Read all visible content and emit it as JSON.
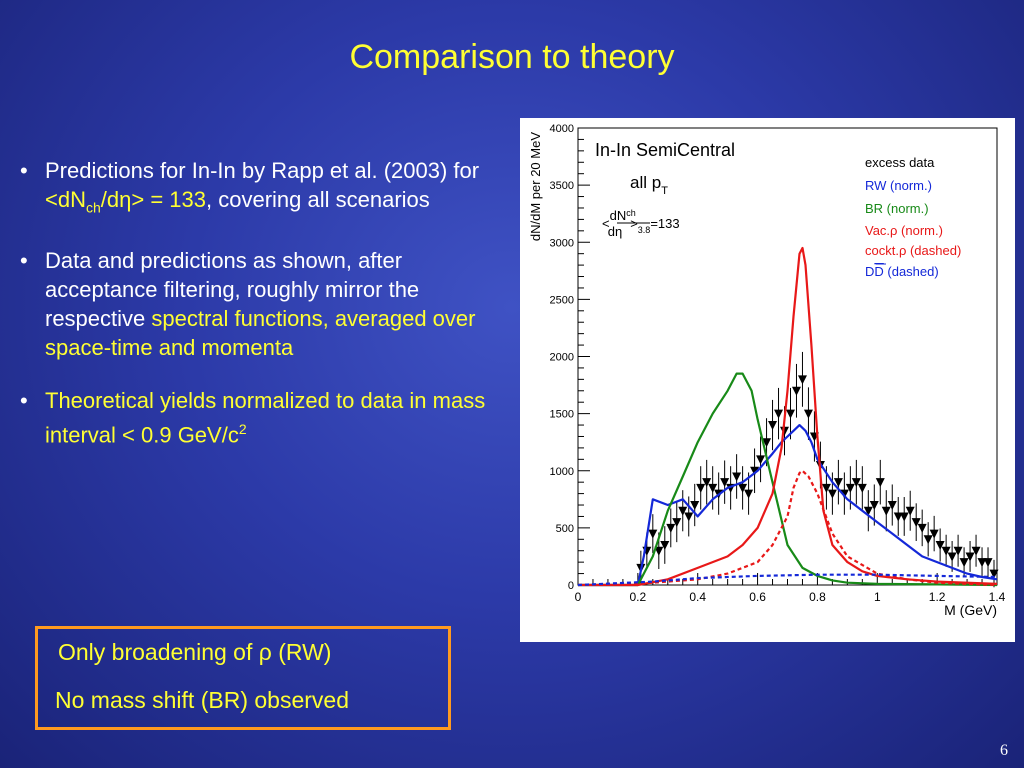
{
  "slide": {
    "title": "Comparison to theory",
    "page_number": "6",
    "bullets": [
      {
        "a": "Predictions for In-In by Rapp et al. (2003) for ",
        "hl_pre": "<dN",
        "hl_sub": "ch",
        "hl_post": "/dη> = 133",
        "b": ", covering all scenarios"
      },
      {
        "a": "Data and predictions as shown, after acceptance filtering, roughly mirror the respective ",
        "hl": "spectral functions, averaged over space-time and momenta"
      },
      {
        "hl": "Theoretical yields normalized to data in mass interval < 0.9 GeV/c",
        "sup": "2"
      }
    ],
    "callout": {
      "line1_pre": "Only broadening of ",
      "rho": "ρ",
      "line1_post": " (RW)",
      "line2": "No mass shift (BR) observed"
    }
  },
  "chart_data": {
    "type": "line",
    "title": "In-In SemiCentral",
    "subtitle": "all pT",
    "annotation": "<dNch/dη>3.8=133",
    "xlabel": "M (GeV)",
    "ylabel": "dN/dM per 20 MeV",
    "xlim": [
      0,
      1.4
    ],
    "ylim": [
      0,
      4000
    ],
    "xticks": [
      "0",
      "0.2",
      "0.4",
      "0.6",
      "0.8",
      "1",
      "1.2",
      "1.4"
    ],
    "yticks": [
      "0",
      "500",
      "1000",
      "1500",
      "2000",
      "2500",
      "3000",
      "3500",
      "4000"
    ],
    "legend_position": "top-right",
    "series": [
      {
        "name": "excess data",
        "kind": "points",
        "color": "#000000",
        "x": [
          0.21,
          0.23,
          0.25,
          0.27,
          0.29,
          0.31,
          0.33,
          0.35,
          0.37,
          0.39,
          0.41,
          0.43,
          0.45,
          0.47,
          0.49,
          0.51,
          0.53,
          0.55,
          0.57,
          0.59,
          0.61,
          0.63,
          0.65,
          0.67,
          0.69,
          0.71,
          0.73,
          0.75,
          0.77,
          0.79,
          0.81,
          0.83,
          0.85,
          0.87,
          0.89,
          0.91,
          0.93,
          0.95,
          0.97,
          0.99,
          1.01,
          1.03,
          1.05,
          1.07,
          1.09,
          1.11,
          1.13,
          1.15,
          1.17,
          1.19,
          1.21,
          1.23,
          1.25,
          1.27,
          1.29,
          1.31,
          1.33,
          1.35,
          1.37,
          1.39
        ],
        "y": [
          150,
          300,
          450,
          300,
          350,
          500,
          550,
          650,
          600,
          700,
          850,
          900,
          850,
          800,
          900,
          850,
          950,
          850,
          800,
          1000,
          1100,
          1250,
          1400,
          1500,
          1350,
          1500,
          1700,
          1800,
          1500,
          1300,
          1050,
          850,
          800,
          900,
          800,
          850,
          900,
          850,
          650,
          700,
          900,
          650,
          700,
          600,
          600,
          650,
          550,
          500,
          400,
          450,
          350,
          300,
          250,
          300,
          200,
          250,
          300,
          200,
          200,
          100
        ],
        "err": [
          150,
          160,
          170,
          160,
          165,
          170,
          175,
          180,
          175,
          185,
          190,
          195,
          190,
          185,
          190,
          190,
          195,
          190,
          185,
          195,
          200,
          210,
          220,
          225,
          215,
          225,
          235,
          240,
          230,
          220,
          205,
          190,
          185,
          195,
          185,
          190,
          195,
          190,
          180,
          180,
          195,
          180,
          180,
          170,
          170,
          175,
          165,
          160,
          150,
          155,
          145,
          140,
          135,
          140,
          130,
          135,
          140,
          130,
          130,
          120
        ]
      },
      {
        "name": "RW (norm.)",
        "kind": "line",
        "color": "#1428d8",
        "x": [
          0,
          0.18,
          0.2,
          0.22,
          0.25,
          0.3,
          0.35,
          0.4,
          0.45,
          0.5,
          0.55,
          0.6,
          0.65,
          0.68,
          0.7,
          0.72,
          0.74,
          0.76,
          0.78,
          0.8,
          0.85,
          0.9,
          0.95,
          1.0,
          1.05,
          1.1,
          1.15,
          1.2,
          1.25,
          1.3,
          1.35,
          1.4
        ],
        "y": [
          0,
          0,
          0,
          250,
          750,
          700,
          750,
          600,
          750,
          850,
          900,
          1000,
          1150,
          1250,
          1300,
          1350,
          1400,
          1350,
          1250,
          1100,
          900,
          750,
          650,
          550,
          450,
          350,
          250,
          200,
          150,
          100,
          70,
          50
        ]
      },
      {
        "name": "BR (norm.)",
        "kind": "line",
        "color": "#188a18",
        "x": [
          0,
          0.2,
          0.25,
          0.3,
          0.35,
          0.4,
          0.45,
          0.5,
          0.53,
          0.55,
          0.58,
          0.6,
          0.65,
          0.7,
          0.75,
          0.8,
          0.85,
          0.9,
          1.0,
          1.2,
          1.4
        ],
        "y": [
          0,
          0,
          250,
          650,
          950,
          1250,
          1500,
          1700,
          1850,
          1850,
          1700,
          1450,
          900,
          350,
          150,
          80,
          40,
          20,
          10,
          5,
          0
        ]
      },
      {
        "name": "Vac.ρ (norm.)",
        "kind": "line",
        "color": "#e81818",
        "x": [
          0,
          0.2,
          0.3,
          0.4,
          0.5,
          0.55,
          0.6,
          0.65,
          0.68,
          0.7,
          0.72,
          0.74,
          0.75,
          0.76,
          0.78,
          0.8,
          0.82,
          0.85,
          0.9,
          0.95,
          1.0,
          1.1,
          1.2,
          1.3,
          1.4
        ],
        "y": [
          0,
          0,
          50,
          150,
          250,
          350,
          500,
          800,
          1200,
          1700,
          2350,
          2900,
          2950,
          2800,
          2100,
          1300,
          650,
          350,
          200,
          120,
          80,
          50,
          30,
          20,
          10
        ]
      },
      {
        "name": "cockt.ρ (dashed)",
        "kind": "dashed",
        "color": "#e81818",
        "x": [
          0,
          0.25,
          0.4,
          0.5,
          0.6,
          0.65,
          0.7,
          0.72,
          0.74,
          0.75,
          0.77,
          0.8,
          0.85,
          0.9,
          1.0,
          1.1,
          1.2,
          1.4
        ],
        "y": [
          0,
          20,
          50,
          100,
          200,
          350,
          600,
          850,
          980,
          1000,
          950,
          800,
          450,
          250,
          100,
          50,
          20,
          0
        ]
      },
      {
        "name": "DD̄ (dashed)",
        "kind": "dashed",
        "color": "#1428d8",
        "x": [
          0,
          0.25,
          0.4,
          0.6,
          0.8,
          1.0,
          1.2,
          1.4
        ],
        "y": [
          0,
          30,
          60,
          80,
          90,
          90,
          80,
          70
        ]
      }
    ]
  }
}
